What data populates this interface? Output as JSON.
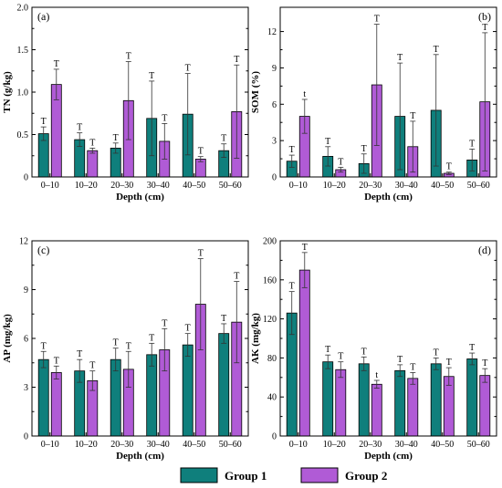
{
  "colors": {
    "group1": "#0f7f7c",
    "group2": "#b05bd6"
  },
  "legend": {
    "group1": "Group 1",
    "group2": "Group 2"
  },
  "chart_data": [
    {
      "type": "bar",
      "panel": "(a)",
      "ylabel": "TN (g/kg)",
      "xlabel": "Depth (cm)",
      "ylim": [
        0,
        2.0
      ],
      "yticks": [
        "0",
        "0.5",
        "1.0",
        "1.5",
        "2.0"
      ],
      "yticks_values": [
        0,
        0.5,
        1.0,
        1.5,
        2.0
      ],
      "categories": [
        "0–10",
        "10–20",
        "20–30",
        "30–40",
        "40–50",
        "50–60"
      ],
      "series": [
        {
          "name": "Group 1",
          "values": [
            0.51,
            0.44,
            0.34,
            0.69,
            0.74,
            0.31
          ],
          "errors": [
            0.08,
            0.08,
            0.06,
            0.44,
            0.48,
            0.08
          ],
          "labels": [
            "T",
            "T",
            "T",
            "T",
            "T",
            "T"
          ]
        },
        {
          "name": "Group 2",
          "values": [
            1.09,
            0.31,
            0.9,
            0.42,
            0.21,
            0.77
          ],
          "errors": [
            0.18,
            0.03,
            0.46,
            0.21,
            0.03,
            0.55
          ],
          "labels": [
            "T",
            "T",
            "T",
            "T",
            "T",
            "T"
          ]
        }
      ]
    },
    {
      "type": "bar",
      "panel": "(b)",
      "ylabel": "SOM (%)",
      "xlabel": "Depth (cm)",
      "ylim": [
        0,
        14
      ],
      "yticks": [
        "0",
        "3",
        "6",
        "9",
        "12"
      ],
      "yticks_values": [
        0,
        3,
        6,
        9,
        12
      ],
      "categories": [
        "0–10",
        "10–20",
        "20–30",
        "30–40",
        "40–50",
        "50–60"
      ],
      "series": [
        {
          "name": "Group 1",
          "values": [
            1.3,
            1.7,
            1.1,
            5.0,
            5.5,
            1.4
          ],
          "errors": [
            0.5,
            0.8,
            0.8,
            4.4,
            4.6,
            0.9
          ],
          "labels": [
            "T",
            "T",
            "T",
            "T",
            "T",
            "T"
          ]
        },
        {
          "name": "Group 2",
          "values": [
            5.0,
            0.6,
            7.6,
            2.5,
            0.3,
            6.2
          ],
          "errors": [
            1.4,
            0.2,
            5.0,
            2.1,
            0.1,
            5.7
          ],
          "labels": [
            "t",
            "T",
            "T",
            "T",
            "T",
            "T"
          ]
        }
      ]
    },
    {
      "type": "bar",
      "panel": "(c)",
      "ylabel": "AP (mg/kg)",
      "xlabel": "Depth (cm)",
      "ylim": [
        0,
        12
      ],
      "yticks": [
        "0",
        "3",
        "6",
        "9",
        "12"
      ],
      "yticks_values": [
        0,
        3,
        6,
        9,
        12
      ],
      "categories": [
        "0–10",
        "10–20",
        "20–30",
        "30–40",
        "40–50",
        "50–60"
      ],
      "series": [
        {
          "name": "Group 1",
          "values": [
            4.7,
            4.0,
            4.7,
            5.0,
            5.6,
            6.3
          ],
          "errors": [
            0.5,
            0.7,
            0.7,
            0.7,
            0.7,
            0.6
          ],
          "labels": [
            "T",
            "T",
            "T",
            "T",
            "T",
            "T"
          ]
        },
        {
          "name": "Group 2",
          "values": [
            3.9,
            3.4,
            4.1,
            5.3,
            8.1,
            7.0
          ],
          "errors": [
            0.4,
            0.6,
            1.1,
            1.3,
            2.8,
            2.5
          ],
          "labels": [
            "T",
            "T",
            "T",
            "T",
            "T",
            "T"
          ]
        }
      ]
    },
    {
      "type": "bar",
      "panel": "(d)",
      "ylabel": "AK (mg/kg)",
      "xlabel": "Depth (cm)",
      "ylim": [
        0,
        200
      ],
      "yticks": [
        "0",
        "40",
        "80",
        "120",
        "160",
        "200"
      ],
      "yticks_values": [
        0,
        40,
        80,
        120,
        160,
        200
      ],
      "categories": [
        "0–10",
        "10–20",
        "20–30",
        "30–40",
        "40–50",
        "50–60"
      ],
      "series": [
        {
          "name": "Group 1",
          "values": [
            126,
            76,
            74,
            67,
            74,
            79
          ],
          "errors": [
            22,
            7,
            7,
            6,
            6,
            6
          ],
          "labels": [
            "T",
            "T",
            "T",
            "T",
            "T",
            "T"
          ]
        },
        {
          "name": "Group 2",
          "values": [
            170,
            68,
            53,
            59,
            61,
            62
          ],
          "errors": [
            18,
            8,
            4,
            6,
            9,
            7
          ],
          "labels": [
            "T",
            "T",
            "t",
            "T",
            "T",
            "T"
          ]
        }
      ]
    }
  ]
}
